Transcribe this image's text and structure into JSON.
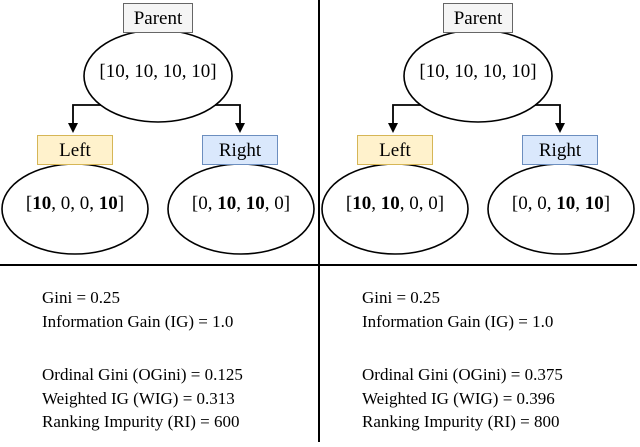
{
  "colors": {
    "parent_fill": "#f5f5f5",
    "parent_border": "#666666",
    "left_fill": "#fff2cc",
    "left_border": "#d6b656",
    "right_fill": "#dae8fc",
    "right_border": "#6c8ebf",
    "line_color": "#000000",
    "text_color": "#000000"
  },
  "panels": [
    {
      "tree": {
        "parent": {
          "label": "Parent",
          "dist_parts": [
            {
              "t": "[10, 10, 10, 10]",
              "b": false
            }
          ]
        },
        "left": {
          "label": "Left",
          "dist_parts": [
            {
              "t": "[",
              "b": false
            },
            {
              "t": "10",
              "b": true
            },
            {
              "t": ", 0, 0, ",
              "b": false
            },
            {
              "t": "10",
              "b": true
            },
            {
              "t": "]",
              "b": false
            }
          ]
        },
        "right": {
          "label": "Right",
          "dist_parts": [
            {
              "t": "[0, ",
              "b": false
            },
            {
              "t": "10",
              "b": true
            },
            {
              "t": ", ",
              "b": false
            },
            {
              "t": "10",
              "b": true
            },
            {
              "t": ", 0]",
              "b": false
            }
          ]
        }
      },
      "stats_group1": [
        "Gini = 0.25",
        "Information Gain (IG) = 1.0"
      ],
      "stats_group2": [
        "Ordinal Gini (OGini) = 0.125",
        "Weighted IG (WIG) = 0.313",
        "Ranking Impurity (RI) = 600"
      ]
    },
    {
      "tree": {
        "parent": {
          "label": "Parent",
          "dist_parts": [
            {
              "t": "[10, 10, 10, 10]",
              "b": false
            }
          ]
        },
        "left": {
          "label": "Left",
          "dist_parts": [
            {
              "t": "[",
              "b": false
            },
            {
              "t": "10",
              "b": true
            },
            {
              "t": ", ",
              "b": false
            },
            {
              "t": "10",
              "b": true
            },
            {
              "t": ", 0, 0]",
              "b": false
            }
          ]
        },
        "right": {
          "label": "Right",
          "dist_parts": [
            {
              "t": "[0, 0, ",
              "b": false
            },
            {
              "t": "10",
              "b": true
            },
            {
              "t": ", ",
              "b": false
            },
            {
              "t": "10",
              "b": true
            },
            {
              "t": "]",
              "b": false
            }
          ]
        }
      },
      "stats_group1": [
        "Gini = 0.25",
        "Information Gain (IG) = 1.0"
      ],
      "stats_group2": [
        "Ordinal Gini (OGini) = 0.375",
        "Weighted IG (WIG) = 0.396",
        "Ranking Impurity (RI) = 800"
      ]
    }
  ]
}
